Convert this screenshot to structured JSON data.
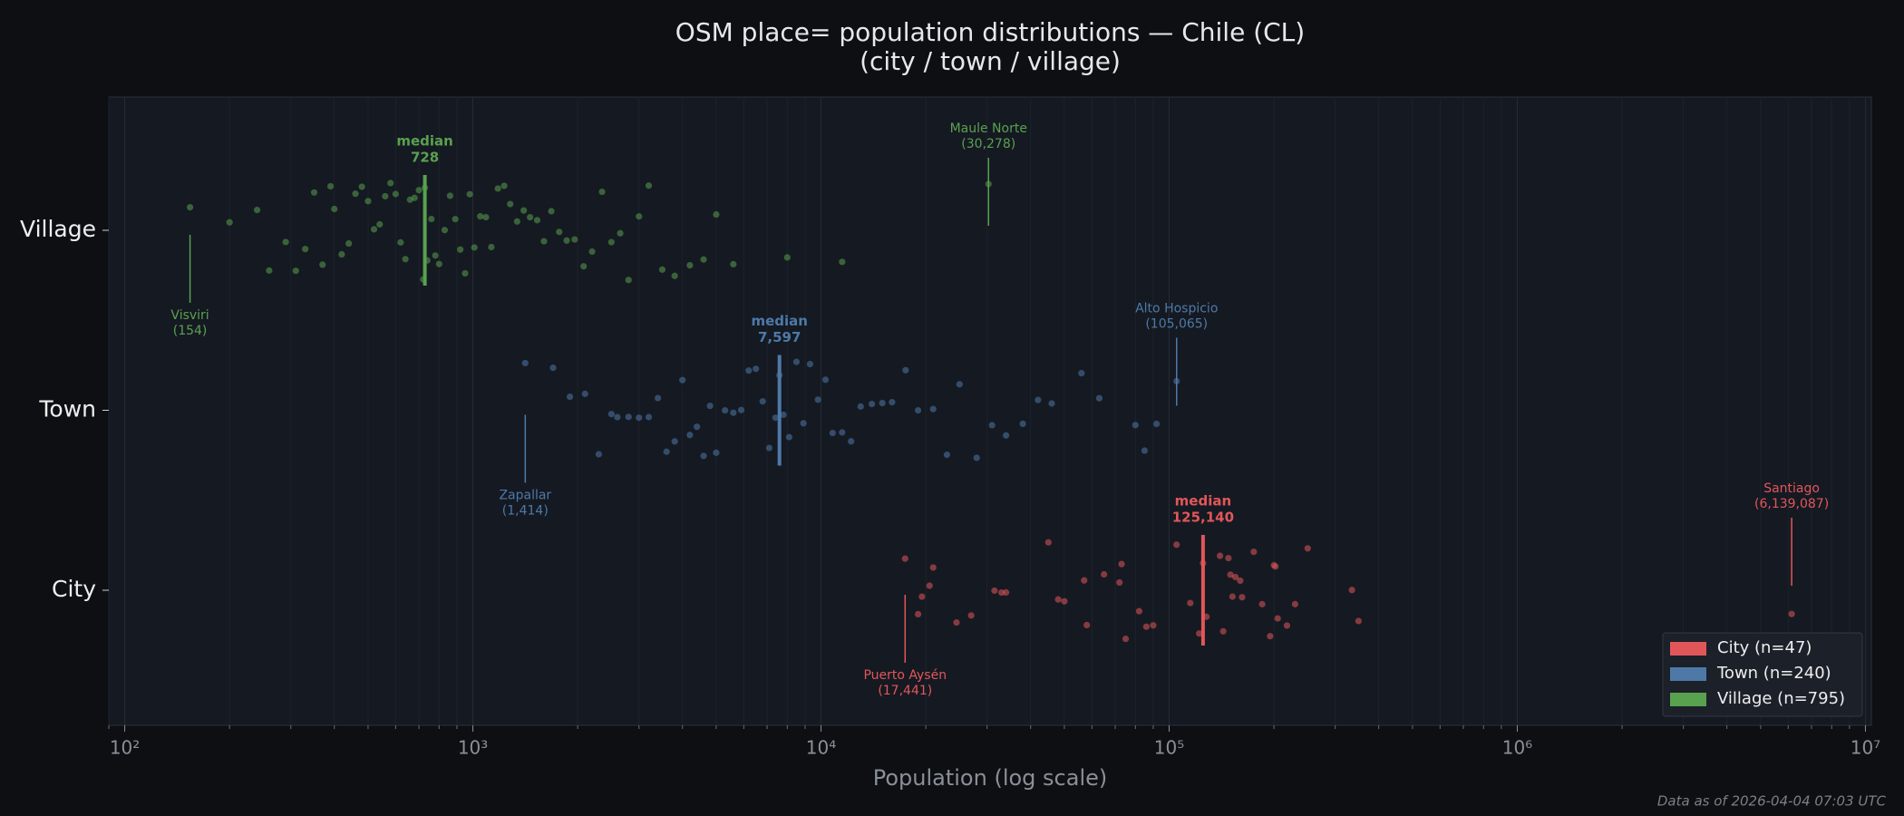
{
  "chart_data": {
    "type": "strip",
    "title": "OSM place= population distributions — Chile (CL)",
    "subtitle": "(city / town / village)",
    "xlabel": "Population (log scale)",
    "footnote": "Data as of 2026-04-04 07:03 UTC",
    "xscale": "log",
    "xlim": [
      90,
      10400000
    ],
    "xticks": [
      {
        "value": 100,
        "label": "10²"
      },
      {
        "value": 1000,
        "label": "10³"
      },
      {
        "value": 10000,
        "label": "10⁴"
      },
      {
        "value": 100000,
        "label": "10⁵"
      },
      {
        "value": 1000000,
        "label": "10⁶"
      },
      {
        "value": 10000000,
        "label": "10⁷"
      }
    ],
    "grid": true,
    "legend": "lower right",
    "median_label": "median",
    "series": [
      {
        "name": "City",
        "legend_label": "City  (n=47)",
        "color": "#e15759",
        "median": 125140,
        "median_label": "125,140",
        "values": [
          17441,
          19000,
          19500,
          20500,
          21000,
          24500,
          27000,
          31500,
          33000,
          34000,
          45000,
          48000,
          50000,
          57000,
          58000,
          65000,
          72000,
          73000,
          75000,
          82000,
          86000,
          90000,
          105000,
          115000,
          122000,
          125140,
          128000,
          140000,
          143000,
          148000,
          150000,
          152000,
          155000,
          160000,
          162000,
          175000,
          185000,
          195000,
          200000,
          202000,
          205000,
          218000,
          230000,
          250000,
          335000,
          350000,
          6139087
        ],
        "annotations": [
          {
            "name": "Puerto Aysén",
            "value": 17441,
            "value_label": "(17,441)"
          },
          {
            "name": "Santiago",
            "value": 6139087,
            "value_label": "(6,139,087)"
          }
        ]
      },
      {
        "name": "Town",
        "legend_label": "Town  (n=240)",
        "color": "#4e79a7",
        "median": 7597,
        "median_label": "7,597",
        "values": [
          1414,
          1700,
          1900,
          2100,
          2300,
          2500,
          2600,
          2800,
          3000,
          3200,
          3400,
          3600,
          3800,
          4000,
          4200,
          4400,
          4600,
          4800,
          5000,
          5300,
          5600,
          5900,
          6200,
          6500,
          6800,
          7100,
          7400,
          7597,
          7800,
          8100,
          8500,
          8900,
          9300,
          9800,
          10300,
          10800,
          11500,
          12200,
          13000,
          14000,
          15000,
          16000,
          17500,
          19000,
          21000,
          23000,
          25000,
          28000,
          31000,
          34000,
          38000,
          42000,
          46000,
          56000,
          63000,
          80000,
          85000,
          92000,
          105065
        ],
        "annotations": [
          {
            "name": "Zapallar",
            "value": 1414,
            "value_label": "(1,414)"
          },
          {
            "name": "Alto Hospicio",
            "value": 105065,
            "value_label": "(105,065)"
          }
        ]
      },
      {
        "name": "Village",
        "legend_label": "Village  (n=795)",
        "color": "#59a14f",
        "median": 728,
        "median_label": "728",
        "values": [
          154,
          200,
          240,
          260,
          290,
          310,
          330,
          350,
          370,
          390,
          400,
          420,
          440,
          460,
          480,
          500,
          520,
          540,
          560,
          580,
          600,
          620,
          640,
          660,
          680,
          700,
          720,
          728,
          740,
          760,
          780,
          800,
          830,
          860,
          890,
          920,
          950,
          980,
          1010,
          1050,
          1090,
          1130,
          1180,
          1230,
          1280,
          1340,
          1400,
          1460,
          1530,
          1600,
          1680,
          1770,
          1860,
          1960,
          2080,
          2200,
          2350,
          2500,
          2650,
          2800,
          3000,
          3200,
          3500,
          3800,
          4200,
          4600,
          5000,
          5600,
          8000,
          11500,
          30278
        ],
        "annotations": [
          {
            "name": "Visviri",
            "value": 154,
            "value_label": "(154)"
          },
          {
            "name": "Maule Norte",
            "value": 30278,
            "value_label": "(30,278)"
          }
        ]
      }
    ]
  }
}
